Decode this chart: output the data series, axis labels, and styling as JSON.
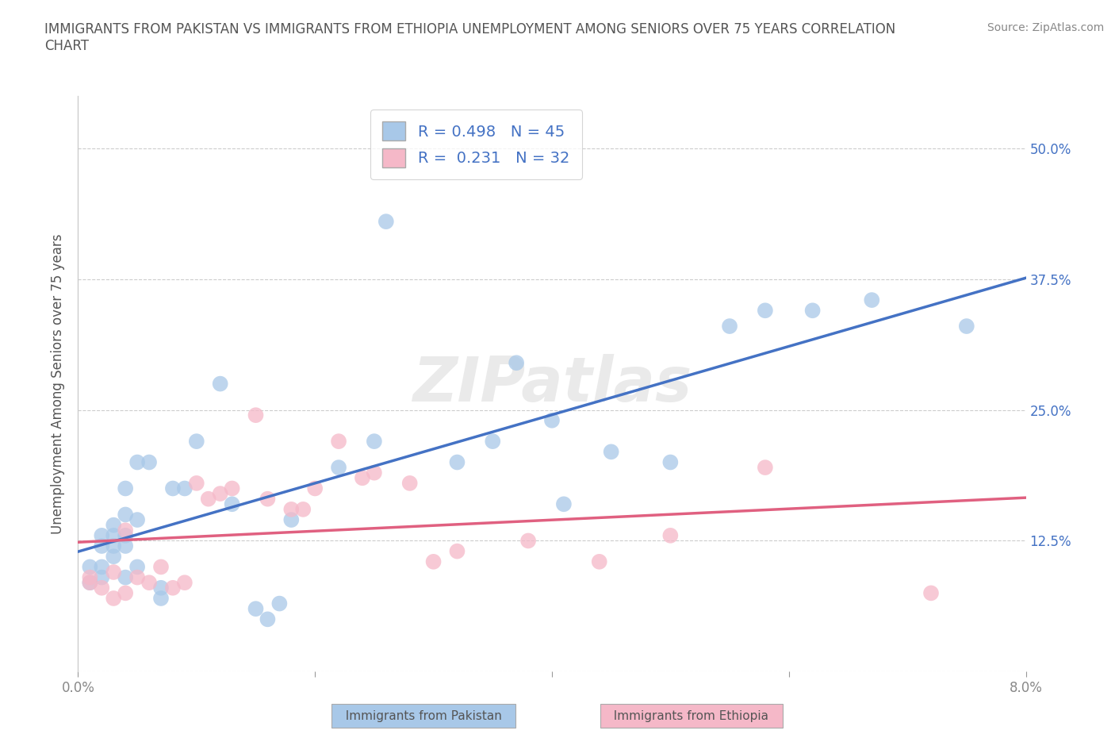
{
  "title": "IMMIGRANTS FROM PAKISTAN VS IMMIGRANTS FROM ETHIOPIA UNEMPLOYMENT AMONG SENIORS OVER 75 YEARS CORRELATION\nCHART",
  "ylabel": "Unemployment Among Seniors over 75 years",
  "source": "Source: ZipAtlas.com",
  "xlim": [
    0.0,
    0.08
  ],
  "ylim": [
    0.0,
    0.55
  ],
  "yticks": [
    0.0,
    0.125,
    0.25,
    0.375,
    0.5
  ],
  "ytick_labels": [
    "",
    "12.5%",
    "25.0%",
    "37.5%",
    "50.0%"
  ],
  "xticks": [
    0.0,
    0.02,
    0.04,
    0.06,
    0.08
  ],
  "xtick_labels": [
    "0.0%",
    "",
    "",
    "",
    "8.0%"
  ],
  "pakistan_color": "#a8c8e8",
  "ethiopia_color": "#f5b8c8",
  "pakistan_line_color": "#4472c4",
  "ethiopia_line_color": "#e06080",
  "pakistan_R": 0.498,
  "pakistan_N": 45,
  "ethiopia_R": 0.231,
  "ethiopia_N": 32,
  "background_color": "#ffffff",
  "watermark": "ZIPatlas",
  "pakistan_x": [
    0.001,
    0.001,
    0.002,
    0.002,
    0.002,
    0.002,
    0.003,
    0.003,
    0.003,
    0.003,
    0.004,
    0.004,
    0.004,
    0.004,
    0.004,
    0.005,
    0.005,
    0.005,
    0.006,
    0.007,
    0.007,
    0.008,
    0.009,
    0.01,
    0.012,
    0.013,
    0.015,
    0.016,
    0.017,
    0.018,
    0.022,
    0.025,
    0.026,
    0.032,
    0.035,
    0.037,
    0.04,
    0.041,
    0.045,
    0.05,
    0.055,
    0.058,
    0.062,
    0.067,
    0.075
  ],
  "pakistan_y": [
    0.085,
    0.1,
    0.09,
    0.1,
    0.12,
    0.13,
    0.11,
    0.12,
    0.13,
    0.14,
    0.09,
    0.12,
    0.13,
    0.15,
    0.175,
    0.1,
    0.145,
    0.2,
    0.2,
    0.07,
    0.08,
    0.175,
    0.175,
    0.22,
    0.275,
    0.16,
    0.06,
    0.05,
    0.065,
    0.145,
    0.195,
    0.22,
    0.43,
    0.2,
    0.22,
    0.295,
    0.24,
    0.16,
    0.21,
    0.2,
    0.33,
    0.345,
    0.345,
    0.355,
    0.33
  ],
  "ethiopia_x": [
    0.001,
    0.001,
    0.002,
    0.003,
    0.003,
    0.004,
    0.004,
    0.005,
    0.006,
    0.007,
    0.008,
    0.009,
    0.01,
    0.011,
    0.012,
    0.013,
    0.015,
    0.016,
    0.018,
    0.019,
    0.02,
    0.022,
    0.024,
    0.025,
    0.028,
    0.03,
    0.032,
    0.038,
    0.044,
    0.05,
    0.058,
    0.072
  ],
  "ethiopia_y": [
    0.085,
    0.09,
    0.08,
    0.095,
    0.07,
    0.075,
    0.135,
    0.09,
    0.085,
    0.1,
    0.08,
    0.085,
    0.18,
    0.165,
    0.17,
    0.175,
    0.245,
    0.165,
    0.155,
    0.155,
    0.175,
    0.22,
    0.185,
    0.19,
    0.18,
    0.105,
    0.115,
    0.125,
    0.105,
    0.13,
    0.195,
    0.075
  ]
}
